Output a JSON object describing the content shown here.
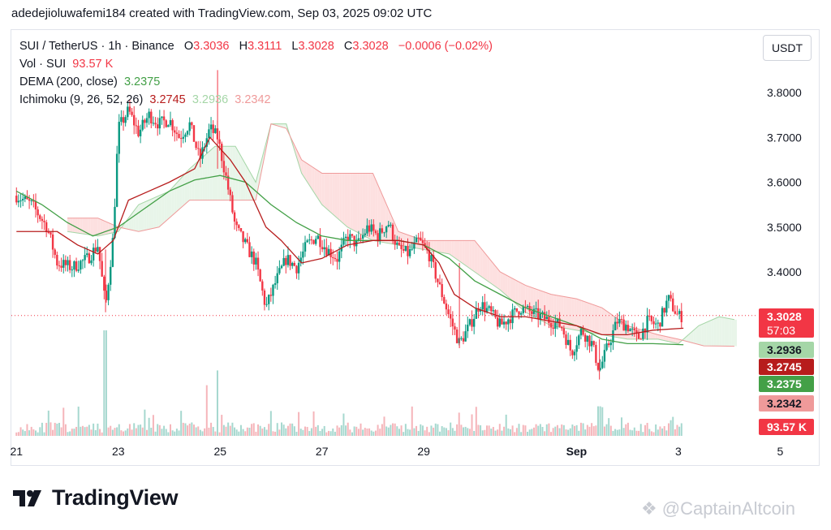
{
  "caption": "adedejioluwafemi184 created with TradingView.com, Sep 03, 2025 09:02 UTC",
  "legend": {
    "symbol": "SUI / TetherUS · 1h · Binance",
    "o_label": "O",
    "o": "3.3036",
    "h_label": "H",
    "h": "3.3111",
    "l_label": "L",
    "l": "3.3028",
    "c_label": "C",
    "c": "3.3028",
    "change": "−0.0006 (−0.02%)",
    "vol_label": "Vol · SUI",
    "vol": "93.57 K",
    "dema_label": "DEMA (200, close)",
    "dema": "3.2375",
    "ichimoku_label": "Ichimoku (9, 26, 52, 26)",
    "ichimoku_base": "3.2745",
    "ichimoku_span_a": "3.2936",
    "ichimoku_span_b": "3.2342"
  },
  "currency_button": "USDT",
  "logo_text": "TradingView",
  "watermark": "@CaptainAltcoin",
  "colors": {
    "up": "#089981",
    "down": "#f23645",
    "dema": "#43a047",
    "base": "#b71c1c",
    "span_a": "#a5d6a7",
    "span_b": "#ef9a9a",
    "cloud_up": "#e8f5e9",
    "cloud_down": "#fde0e0"
  },
  "chart_data": {
    "type": "candlestick",
    "yticks": [
      "3.8000",
      "3.7000",
      "3.6000",
      "3.5000",
      "3.4000"
    ],
    "xticks": [
      "21",
      "23",
      "25",
      "27",
      "29",
      "Sep",
      "3",
      "5"
    ],
    "ylim": [
      3.1,
      3.86
    ],
    "price_labels": [
      {
        "text": "3.3028",
        "sub": "57:03",
        "value": 3.3028,
        "color": "#f23645",
        "textcolor": "#ffffff"
      },
      {
        "text": "3.2936",
        "value": 3.2936,
        "color": "#a5d6a7",
        "textcolor": "#131722"
      },
      {
        "text": "3.2745",
        "value": 3.2745,
        "color": "#b71c1c",
        "textcolor": "#ffffff"
      },
      {
        "text": "3.2375",
        "value": 3.2375,
        "color": "#43a047",
        "textcolor": "#ffffff"
      },
      {
        "text": "3.2342",
        "value": 3.2342,
        "color": "#ef9a9a",
        "textcolor": "#131722"
      },
      {
        "text": "93.57 K",
        "value": null,
        "color": "#f23645",
        "textcolor": "#ffffff"
      }
    ],
    "close_path": [
      [
        21.0,
        3.57
      ],
      [
        21.3,
        3.55
      ],
      [
        21.6,
        3.5
      ],
      [
        21.8,
        3.42
      ],
      [
        22.1,
        3.41
      ],
      [
        22.4,
        3.43
      ],
      [
        22.6,
        3.46
      ],
      [
        22.75,
        3.32
      ],
      [
        22.9,
        3.48
      ],
      [
        23.0,
        3.72
      ],
      [
        23.2,
        3.76
      ],
      [
        23.4,
        3.71
      ],
      [
        23.6,
        3.75
      ],
      [
        23.8,
        3.73
      ],
      [
        24.0,
        3.74
      ],
      [
        24.2,
        3.7
      ],
      [
        24.4,
        3.73
      ],
      [
        24.6,
        3.65
      ],
      [
        24.8,
        3.72
      ],
      [
        24.95,
        3.7
      ],
      [
        25.1,
        3.62
      ],
      [
        25.3,
        3.5
      ],
      [
        25.5,
        3.46
      ],
      [
        25.7,
        3.42
      ],
      [
        25.9,
        3.32
      ],
      [
        26.1,
        3.38
      ],
      [
        26.3,
        3.43
      ],
      [
        26.5,
        3.41
      ],
      [
        26.7,
        3.46
      ],
      [
        26.9,
        3.48
      ],
      [
        27.1,
        3.45
      ],
      [
        27.3,
        3.43
      ],
      [
        27.5,
        3.48
      ],
      [
        27.7,
        3.46
      ],
      [
        27.9,
        3.5
      ],
      [
        28.1,
        3.48
      ],
      [
        28.3,
        3.51
      ],
      [
        28.5,
        3.45
      ],
      [
        28.7,
        3.44
      ],
      [
        28.9,
        3.47
      ],
      [
        29.1,
        3.44
      ],
      [
        29.3,
        3.37
      ],
      [
        29.5,
        3.3
      ],
      [
        29.7,
        3.24
      ],
      [
        29.9,
        3.28
      ],
      [
        30.1,
        3.33
      ],
      [
        30.3,
        3.31
      ],
      [
        30.5,
        3.28
      ],
      [
        30.7,
        3.3
      ],
      [
        30.9,
        3.32
      ],
      [
        31.1,
        3.31
      ],
      [
        31.3,
        3.3
      ],
      [
        31.5,
        3.29
      ],
      [
        31.7,
        3.28
      ],
      [
        31.9,
        3.22
      ],
      [
        32.1,
        3.27
      ],
      [
        32.3,
        3.24
      ],
      [
        32.45,
        3.18
      ],
      [
        32.6,
        3.23
      ],
      [
        32.8,
        3.29
      ],
      [
        33.0,
        3.28
      ],
      [
        33.2,
        3.25
      ],
      [
        33.4,
        3.29
      ],
      [
        33.6,
        3.28
      ],
      [
        33.8,
        3.34
      ],
      [
        34.0,
        3.3
      ],
      [
        34.1,
        3.3028
      ]
    ],
    "wick_spikes": [
      [
        22.75,
        3.31,
        3.45
      ],
      [
        24.95,
        3.63,
        3.85
      ],
      [
        32.45,
        3.16,
        3.25
      ],
      [
        29.7,
        3.23,
        3.42
      ]
    ],
    "dema_path": [
      [
        21.0,
        3.58
      ],
      [
        21.5,
        3.55
      ],
      [
        22.0,
        3.51
      ],
      [
        22.5,
        3.48
      ],
      [
        23.0,
        3.5
      ],
      [
        23.5,
        3.54
      ],
      [
        24.0,
        3.58
      ],
      [
        24.5,
        3.605
      ],
      [
        25.0,
        3.615
      ],
      [
        25.5,
        3.6
      ],
      [
        26.0,
        3.55
      ],
      [
        26.5,
        3.51
      ],
      [
        27.0,
        3.48
      ],
      [
        27.5,
        3.47
      ],
      [
        28.0,
        3.47
      ],
      [
        28.5,
        3.47
      ],
      [
        29.0,
        3.46
      ],
      [
        29.5,
        3.43
      ],
      [
        30.0,
        3.38
      ],
      [
        30.5,
        3.35
      ],
      [
        31.0,
        3.32
      ],
      [
        31.5,
        3.3
      ],
      [
        32.0,
        3.28
      ],
      [
        32.5,
        3.25
      ],
      [
        33.0,
        3.24
      ],
      [
        33.5,
        3.24
      ],
      [
        34.1,
        3.2375
      ]
    ],
    "base_path": [
      [
        21.0,
        3.49
      ],
      [
        21.8,
        3.49
      ],
      [
        22.2,
        3.46
      ],
      [
        22.6,
        3.44
      ],
      [
        22.9,
        3.47
      ],
      [
        23.2,
        3.56
      ],
      [
        23.6,
        3.58
      ],
      [
        24.0,
        3.6
      ],
      [
        24.5,
        3.63
      ],
      [
        24.8,
        3.7
      ],
      [
        25.2,
        3.65
      ],
      [
        25.5,
        3.6
      ],
      [
        25.7,
        3.55
      ],
      [
        25.9,
        3.5
      ],
      [
        26.2,
        3.47
      ],
      [
        26.6,
        3.42
      ],
      [
        27.0,
        3.43
      ],
      [
        27.5,
        3.46
      ],
      [
        28.0,
        3.47
      ],
      [
        28.5,
        3.47
      ],
      [
        29.0,
        3.46
      ],
      [
        29.3,
        3.42
      ],
      [
        29.6,
        3.35
      ],
      [
        30.0,
        3.32
      ],
      [
        30.5,
        3.3
      ],
      [
        31.0,
        3.3
      ],
      [
        31.5,
        3.29
      ],
      [
        32.0,
        3.28
      ],
      [
        32.5,
        3.26
      ],
      [
        33.0,
        3.26
      ],
      [
        33.5,
        3.27
      ],
      [
        34.1,
        3.2745
      ]
    ],
    "span_a_path": [
      [
        22.0,
        3.49
      ],
      [
        22.6,
        3.48
      ],
      [
        23.0,
        3.49
      ],
      [
        23.4,
        3.55
      ],
      [
        24.0,
        3.58
      ],
      [
        24.4,
        3.63
      ],
      [
        24.9,
        3.68
      ],
      [
        25.3,
        3.68
      ],
      [
        25.7,
        3.6
      ],
      [
        26.0,
        3.73
      ],
      [
        26.3,
        3.73
      ],
      [
        26.6,
        3.62
      ],
      [
        27.0,
        3.55
      ],
      [
        27.5,
        3.5
      ],
      [
        28.0,
        3.47
      ],
      [
        28.5,
        3.46
      ],
      [
        29.0,
        3.45
      ],
      [
        29.5,
        3.44
      ],
      [
        30.0,
        3.4
      ],
      [
        30.5,
        3.36
      ],
      [
        31.0,
        3.31
      ],
      [
        31.5,
        3.28
      ],
      [
        32.0,
        3.27
      ],
      [
        32.5,
        3.26
      ],
      [
        33.0,
        3.25
      ],
      [
        33.6,
        3.25
      ],
      [
        34.0,
        3.24
      ],
      [
        34.4,
        3.28
      ],
      [
        34.8,
        3.3
      ],
      [
        35.1,
        3.2936
      ]
    ],
    "span_b_path": [
      [
        22.0,
        3.52
      ],
      [
        22.6,
        3.52
      ],
      [
        23.0,
        3.5
      ],
      [
        23.4,
        3.49
      ],
      [
        23.8,
        3.5
      ],
      [
        24.4,
        3.56
      ],
      [
        24.9,
        3.56
      ],
      [
        25.3,
        3.56
      ],
      [
        25.7,
        3.56
      ],
      [
        26.0,
        3.73
      ],
      [
        26.3,
        3.72
      ],
      [
        26.6,
        3.65
      ],
      [
        27.0,
        3.62
      ],
      [
        27.5,
        3.62
      ],
      [
        28.0,
        3.62
      ],
      [
        28.5,
        3.49
      ],
      [
        29.0,
        3.47
      ],
      [
        29.5,
        3.47
      ],
      [
        30.0,
        3.47
      ],
      [
        30.5,
        3.4
      ],
      [
        31.0,
        3.37
      ],
      [
        31.5,
        3.35
      ],
      [
        32.0,
        3.34
      ],
      [
        32.5,
        3.32
      ],
      [
        33.0,
        3.28
      ],
      [
        33.6,
        3.26
      ],
      [
        34.0,
        3.25
      ],
      [
        34.5,
        3.235
      ],
      [
        35.1,
        3.2342
      ]
    ],
    "volume": {
      "spikes": [
        [
          22.75,
          1.0
        ],
        [
          24.95,
          0.62
        ],
        [
          24.75,
          0.48
        ],
        [
          29.7,
          0.22
        ],
        [
          32.45,
          0.28
        ],
        [
          33.9,
          0.18
        ]
      ],
      "base": 0.08
    }
  }
}
